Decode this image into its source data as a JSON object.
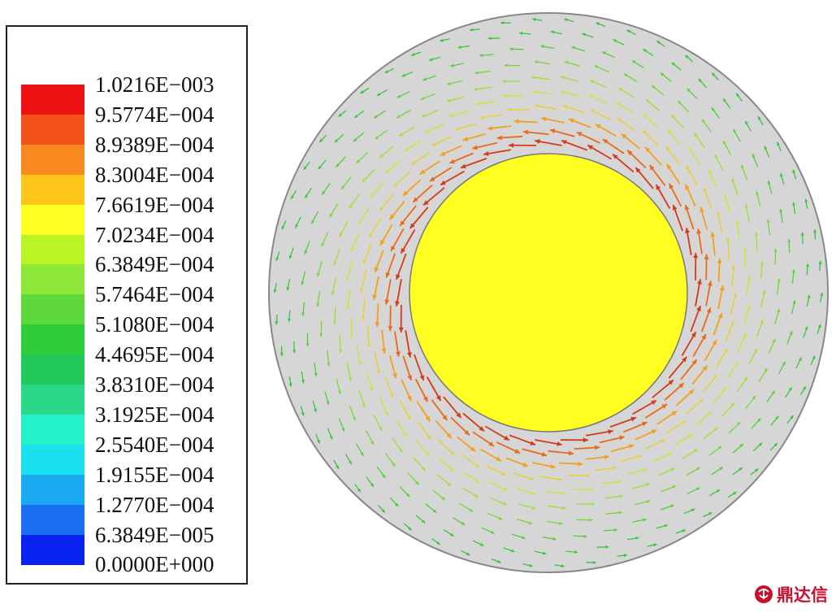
{
  "legend": {
    "labels": [
      "1.0216E−003",
      "9.5774E−004",
      "8.9389E−004",
      "8.3004E−004",
      "7.6619E−004",
      "7.0234E−004",
      "6.3849E−004",
      "5.7464E−004",
      "5.1080E−004",
      "4.4695E−004",
      "3.8310E−004",
      "3.1925E−004",
      "2.5540E−004",
      "1.9155E−004",
      "1.2770E−004",
      "6.3849E−005",
      "0.0000E+000"
    ],
    "colors": [
      "#ee1111",
      "#f2521c",
      "#f88a20",
      "#ffc61a",
      "#ffff22",
      "#b8f522",
      "#8ee83a",
      "#5ed83a",
      "#2ecd3a",
      "#22c85a",
      "#2ad88a",
      "#22f2c8",
      "#1ae0f0",
      "#1aaaf2",
      "#1a6ef2",
      "#0a22f0"
    ]
  },
  "diagram": {
    "outer_disk_color": "#d6d6d6",
    "inner_disk_color": "#ffff22",
    "vector_field": "counter-clockwise velocity vectors, highest magnitude near inner cylinder"
  },
  "watermark": {
    "logo": "dingdaxin-logo-icon",
    "text": "鼎达信"
  }
}
